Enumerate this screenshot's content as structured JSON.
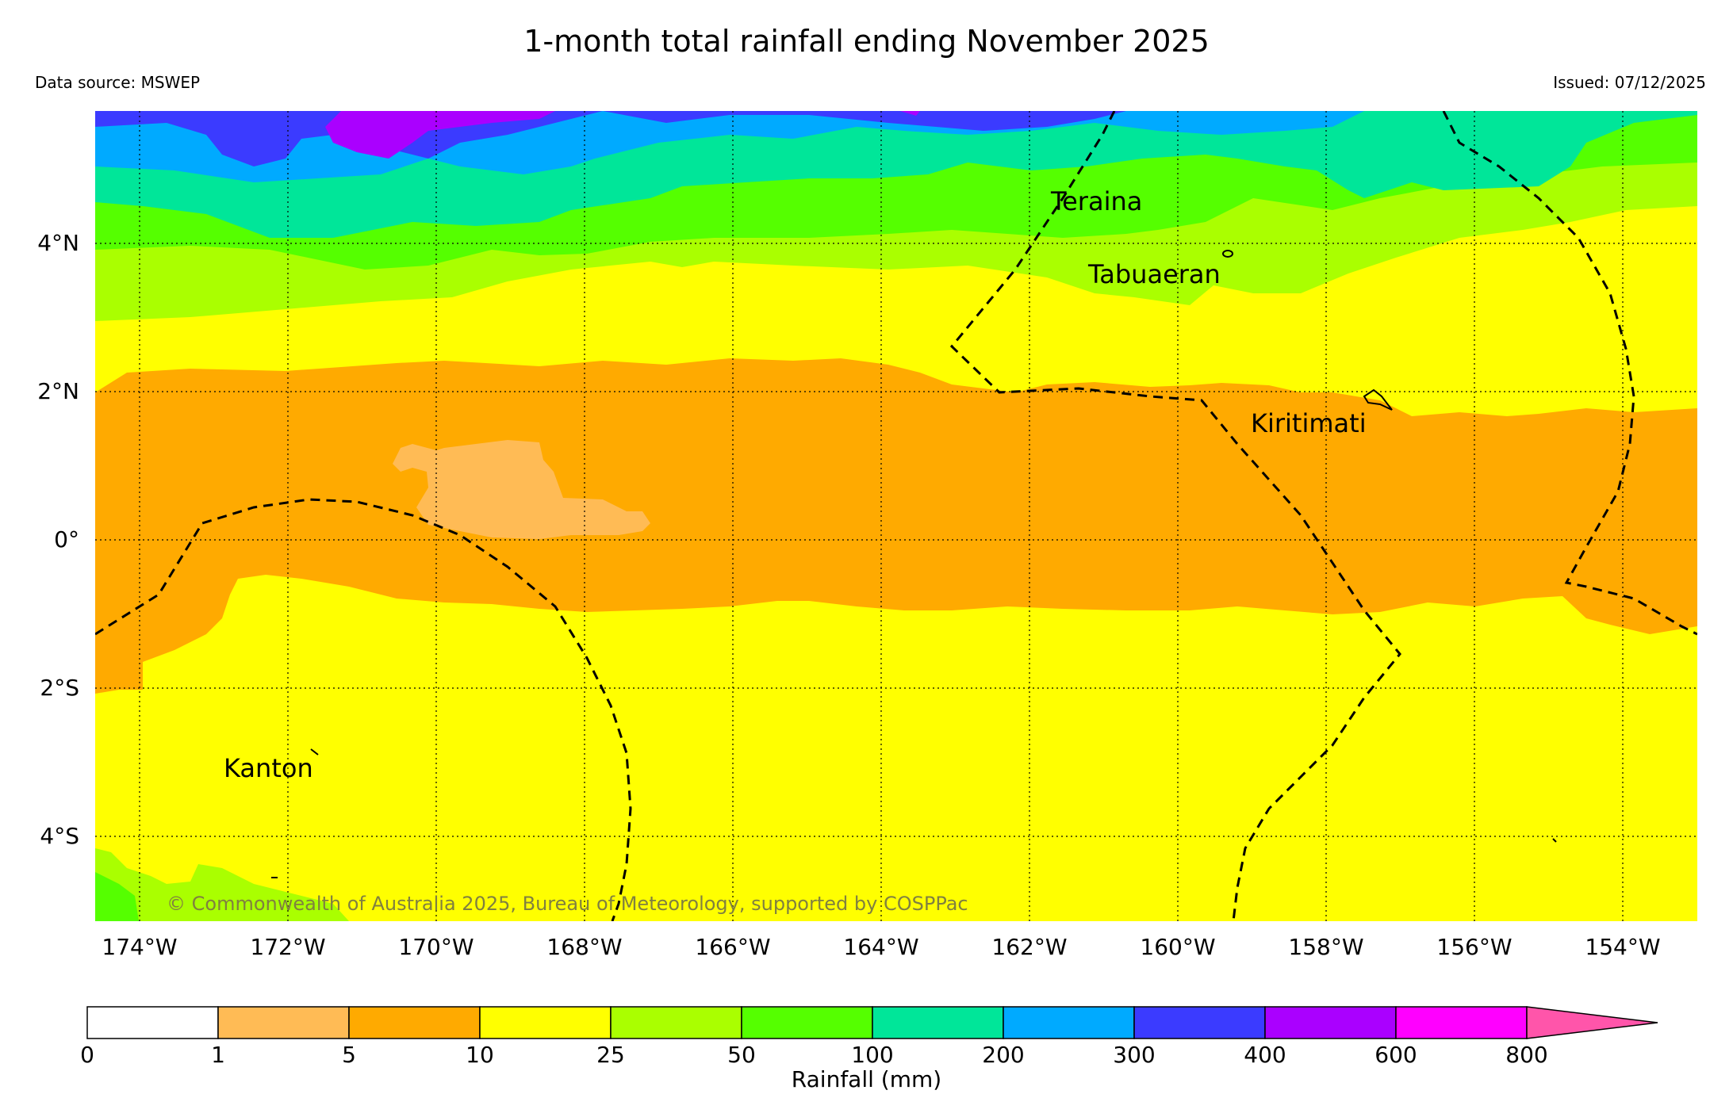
{
  "title": "1-month total rainfall ending November 2025",
  "data_source": "Data source: MSWEP",
  "issued": "Issued: 07/12/2025",
  "copyright": "© Commonwealth of Australia 2025, Bureau of Meteorology, supported by COSPPac",
  "lat_labels": [
    "4°N",
    "2°N",
    "0°",
    "2°S",
    "4°S"
  ],
  "lon_labels": [
    "174°W",
    "172°W",
    "170°W",
    "168°W",
    "166°W",
    "164°W",
    "162°W",
    "160°W",
    "158°W",
    "156°W",
    "154°W"
  ],
  "places": [
    "Teraina",
    "Tabuaeran",
    "Kiritimati",
    "Kanton"
  ],
  "colorbar": {
    "title": "Rainfall (mm)",
    "ticks": [
      "0",
      "1",
      "5",
      "10",
      "25",
      "50",
      "100",
      "200",
      "300",
      "400",
      "600",
      "800"
    ],
    "colors": [
      "#ffffff",
      "#ffbb55",
      "#ffaa00",
      "#ffff00",
      "#aaff00",
      "#55ff00",
      "#00e699",
      "#00aaff",
      "#3b3bff",
      "#aa00ff",
      "#ff00ff",
      "#ff55aa"
    ]
  }
}
